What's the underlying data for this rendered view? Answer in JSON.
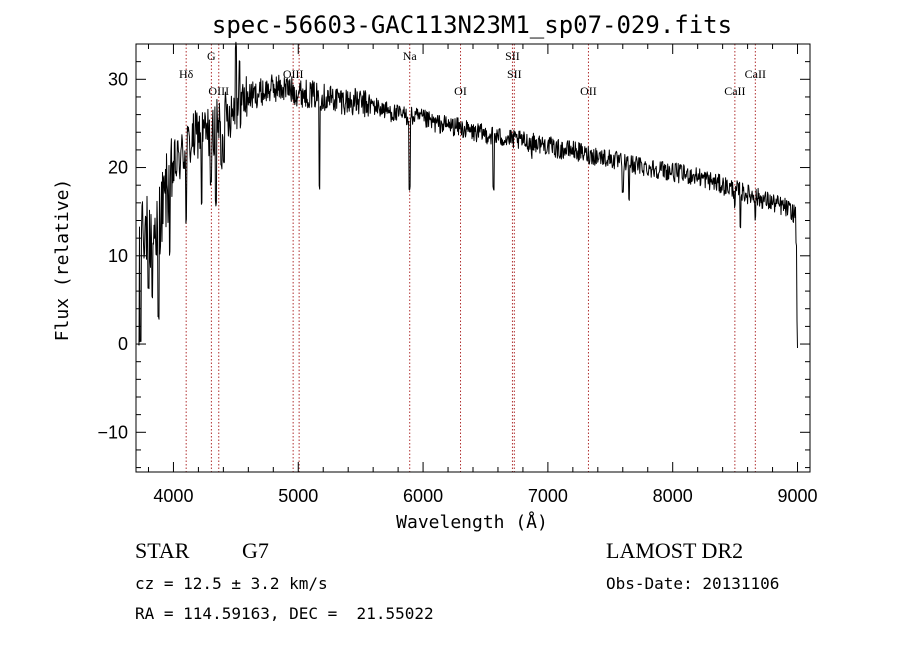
{
  "chart_data": {
    "type": "line",
    "title": "spec-56603-GAC113N23M1_sp07-029.fits",
    "xlabel": "Wavelength (Å)",
    "ylabel": "Flux (relative)",
    "xlim": [
      3700,
      9100
    ],
    "ylim": [
      -14.5,
      34
    ],
    "x_ticks": [
      4000,
      5000,
      6000,
      7000,
      8000,
      9000
    ],
    "x_tick_labels": [
      "4000",
      "5000",
      "6000",
      "7000",
      "8000",
      "9000"
    ],
    "y_ticks": [
      -10,
      0,
      10,
      20,
      30
    ],
    "y_tick_labels": [
      "−10",
      "0",
      "10",
      "20",
      "30"
    ],
    "grid": false,
    "series": [
      {
        "color": "#000000",
        "continuum": [
          [
            3700,
            0
          ],
          [
            3720,
            12
          ],
          [
            3760,
            14
          ],
          [
            3800,
            12
          ],
          [
            3850,
            13
          ],
          [
            3900,
            15
          ],
          [
            4000,
            20
          ],
          [
            4100,
            22
          ],
          [
            4200,
            24
          ],
          [
            4300,
            24
          ],
          [
            4400,
            25.5
          ],
          [
            4500,
            27
          ],
          [
            4600,
            28
          ],
          [
            4700,
            28.5
          ],
          [
            4800,
            29
          ],
          [
            4900,
            29
          ],
          [
            5000,
            28.5
          ],
          [
            5100,
            28.3
          ],
          [
            5200,
            28
          ],
          [
            5300,
            27.8
          ],
          [
            5400,
            27.5
          ],
          [
            5500,
            27.3
          ],
          [
            5600,
            27
          ],
          [
            5700,
            26.5
          ],
          [
            5800,
            26
          ],
          [
            5900,
            25.8
          ],
          [
            6000,
            25.5
          ],
          [
            6100,
            25
          ],
          [
            6200,
            24.8
          ],
          [
            6300,
            24.5
          ],
          [
            6400,
            24
          ],
          [
            6500,
            23.8
          ],
          [
            6600,
            23.5
          ],
          [
            6700,
            23.2
          ],
          [
            6800,
            23
          ],
          [
            6900,
            22.8
          ],
          [
            7000,
            22.5
          ],
          [
            7100,
            22
          ],
          [
            7200,
            22
          ],
          [
            7300,
            21.5
          ],
          [
            7400,
            21.3
          ],
          [
            7500,
            21
          ],
          [
            7600,
            20.5
          ],
          [
            7700,
            20.3
          ],
          [
            7800,
            20
          ],
          [
            7900,
            19.8
          ],
          [
            8000,
            19.5
          ],
          [
            8100,
            19.2
          ],
          [
            8200,
            19
          ],
          [
            8300,
            18.5
          ],
          [
            8400,
            18
          ],
          [
            8500,
            17.5
          ],
          [
            8600,
            17
          ],
          [
            8700,
            16.5
          ],
          [
            8800,
            16
          ],
          [
            8900,
            15.5
          ],
          [
            8950,
            15
          ],
          [
            9000,
            14.5
          ]
        ],
        "features": [
          [
            3720,
            0
          ],
          [
            3735,
            0.5
          ],
          [
            3750,
            16
          ],
          [
            3800,
            6
          ],
          [
            3830,
            5
          ],
          [
            3880,
            3
          ],
          [
            3930,
            17
          ],
          [
            3970,
            10
          ],
          [
            4102,
            14
          ],
          [
            4226,
            16
          ],
          [
            4300,
            18
          ],
          [
            4340,
            16
          ],
          [
            4383,
            20
          ],
          [
            4405,
            21
          ],
          [
            4500,
            34
          ],
          [
            4530,
            32
          ],
          [
            5170,
            18
          ],
          [
            5893,
            17.5
          ],
          [
            6563,
            17.5
          ],
          [
            6870,
            21.5
          ],
          [
            7600,
            17
          ],
          [
            7650,
            16.5
          ],
          [
            8498,
            15.5
          ],
          [
            8542,
            13.5
          ],
          [
            8662,
            14.5
          ],
          [
            8950,
            14
          ],
          [
            8990,
            11
          ],
          [
            9000,
            3
          ],
          [
            9005,
            0
          ]
        ]
      }
    ],
    "reference_lines": {
      "color": "#b03030",
      "lines": [
        {
          "x": 4102,
          "label": "Hδ",
          "row": 2
        },
        {
          "x": 4304,
          "label": "G",
          "row": 0
        },
        {
          "x": 4363,
          "label": "OIII",
          "row": 3
        },
        {
          "x": 4959,
          "label": "OIII",
          "row": 2
        },
        {
          "x": 5007,
          "label": "",
          "row": 2
        },
        {
          "x": 5893,
          "label": "Na",
          "row": 0
        },
        {
          "x": 6300,
          "label": "OI",
          "row": 3
        },
        {
          "x": 6716,
          "label": "SII",
          "row": 0
        },
        {
          "x": 6731,
          "label": "SII",
          "row": 2
        },
        {
          "x": 7325,
          "label": "OII",
          "row": 3
        },
        {
          "x": 8498,
          "label": "CaII",
          "row": 3
        },
        {
          "x": 8662,
          "label": "CaII",
          "row": 2
        }
      ]
    }
  },
  "footer": {
    "class": "STAR",
    "subclass": "G7",
    "survey": "LAMOST DR2",
    "velocity": "cz = 12.5 ± 3.2 km/s",
    "obs_date": "Obs-Date: 20131106",
    "coords": "RA = 114.59163, DEC =  21.55022"
  }
}
